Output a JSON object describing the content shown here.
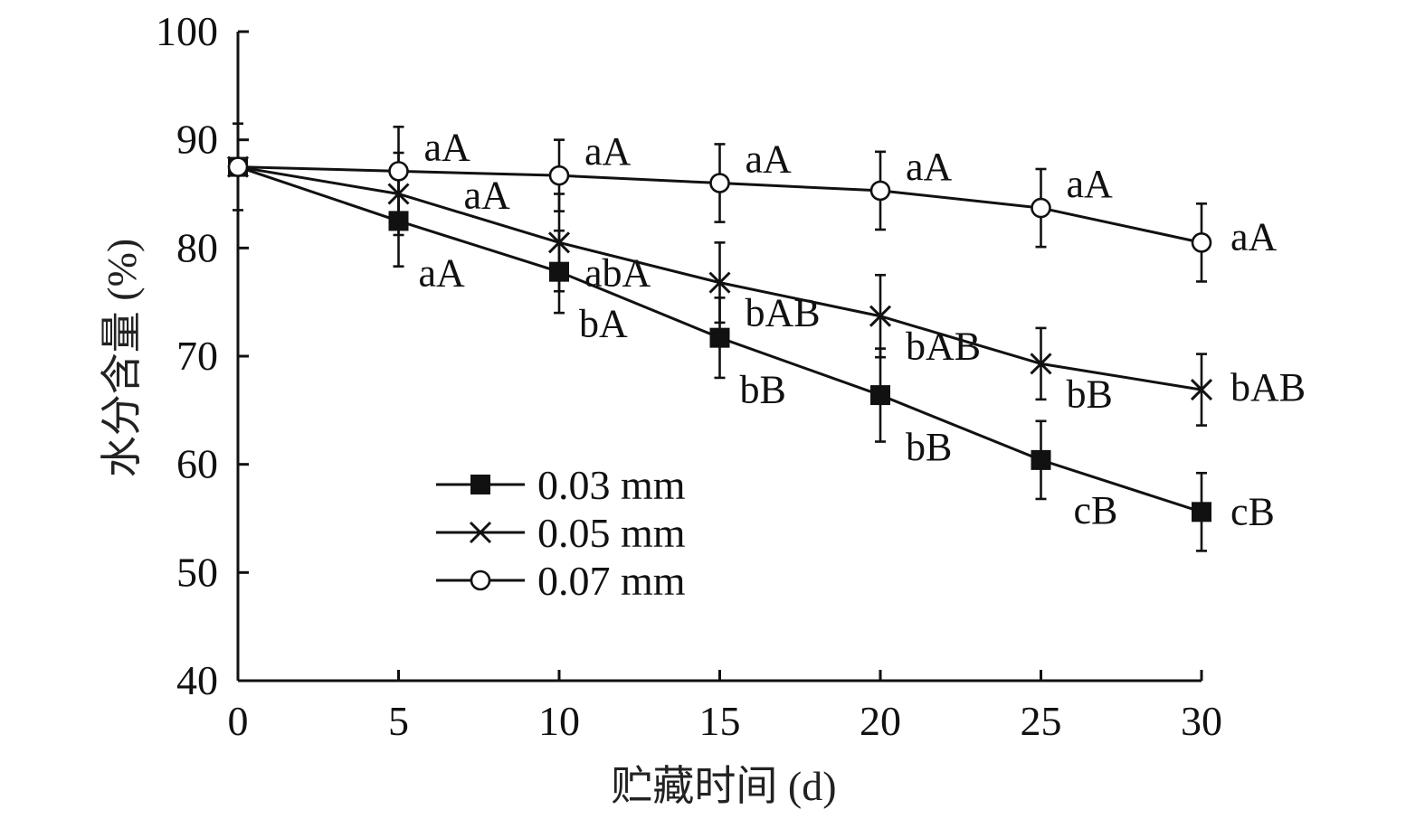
{
  "chart_data": {
    "type": "line",
    "title": "",
    "xlabel": "贮藏时间 (d)",
    "ylabel": "水分含量 (%)",
    "xlim": [
      0,
      30
    ],
    "ylim": [
      40,
      100
    ],
    "xticks": [
      0,
      5,
      10,
      15,
      20,
      25,
      30
    ],
    "yticks": [
      40,
      50,
      60,
      70,
      80,
      90,
      100
    ],
    "grid": false,
    "legend_position": "lower-center",
    "x": [
      0,
      5,
      10,
      15,
      20,
      25,
      30
    ],
    "series": [
      {
        "name": "0.03 mm",
        "marker": "filled-square",
        "values": [
          87.5,
          82.5,
          77.8,
          71.7,
          66.4,
          60.4,
          55.6
        ],
        "error": [
          0,
          4.2,
          3.8,
          3.7,
          4.3,
          3.6,
          3.6
        ],
        "labels": [
          "",
          "aA",
          "bA",
          "bB",
          "bB",
          "cB",
          "cB"
        ]
      },
      {
        "name": "0.05 mm",
        "marker": "x",
        "values": [
          87.5,
          85.0,
          80.5,
          76.8,
          73.7,
          69.3,
          66.9
        ],
        "error": [
          0,
          3.8,
          4.5,
          3.7,
          3.8,
          3.3,
          3.3
        ],
        "labels": [
          "",
          "aA",
          "abA",
          "bAB",
          "bAB",
          "bB",
          "bAB"
        ]
      },
      {
        "name": "0.07 mm",
        "marker": "open-circle",
        "values": [
          87.5,
          87.1,
          86.7,
          86.0,
          85.3,
          83.7,
          80.5
        ],
        "error": [
          4.0,
          4.1,
          3.3,
          3.6,
          3.6,
          3.6,
          3.6
        ],
        "labels": [
          "",
          "aA",
          "aA",
          "aA",
          "aA",
          "aA",
          "aA"
        ]
      }
    ]
  }
}
